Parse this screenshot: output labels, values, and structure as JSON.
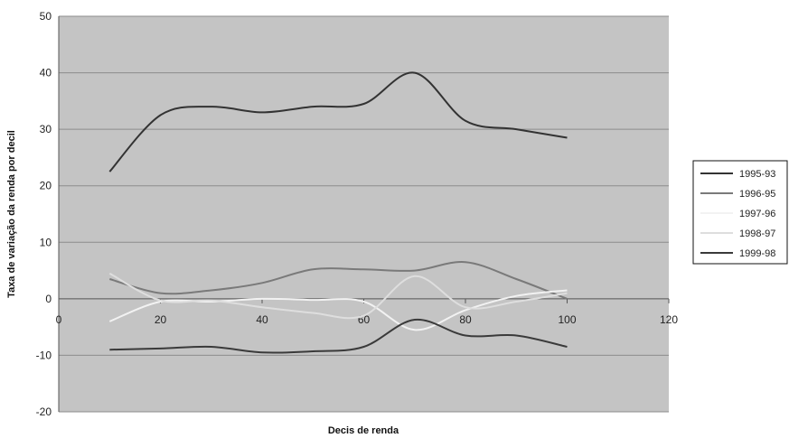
{
  "chart_data": {
    "type": "line",
    "title": "",
    "xlabel": "Decis de renda",
    "ylabel": "Taxa de variação da renda por decil",
    "xlim": [
      0,
      120
    ],
    "ylim": [
      -20,
      50
    ],
    "x_ticks": [
      "0",
      "20",
      "40",
      "60",
      "80",
      "100",
      "120"
    ],
    "y_ticks": [
      "50",
      "40",
      "30",
      "20",
      "10",
      "0",
      "-10",
      "-20"
    ],
    "grid": true,
    "legend_position": "right",
    "plot_background": "#c4c4c4",
    "x": [
      10,
      20,
      30,
      40,
      50,
      60,
      70,
      80,
      90,
      100
    ],
    "series": [
      {
        "name": "1995-93",
        "color": "#333333",
        "values": [
          22.5,
          32.5,
          34.0,
          33.0,
          34.0,
          34.5,
          40.0,
          31.5,
          30.0,
          28.5
        ]
      },
      {
        "name": "1996-95",
        "color": "#7a7a7a",
        "values": [
          3.5,
          1.0,
          1.5,
          2.8,
          5.2,
          5.2,
          5.0,
          6.5,
          3.5,
          0.0
        ]
      },
      {
        "name": "1997-96",
        "color": "#f2f2f2",
        "values": [
          -4.0,
          -0.5,
          -0.5,
          0.0,
          -0.2,
          -0.5,
          -5.5,
          -2.0,
          0.5,
          1.5
        ]
      },
      {
        "name": "1998-97",
        "color": "#dedede",
        "values": [
          4.5,
          -0.3,
          -0.3,
          -1.5,
          -2.5,
          -3.0,
          4.0,
          -1.5,
          -0.5,
          1.0
        ]
      },
      {
        "name": "1999-98",
        "color": "#3a3a3a",
        "values": [
          -9.0,
          -8.8,
          -8.5,
          -9.5,
          -9.3,
          -8.5,
          -3.7,
          -6.5,
          -6.5,
          -8.5
        ]
      }
    ]
  }
}
